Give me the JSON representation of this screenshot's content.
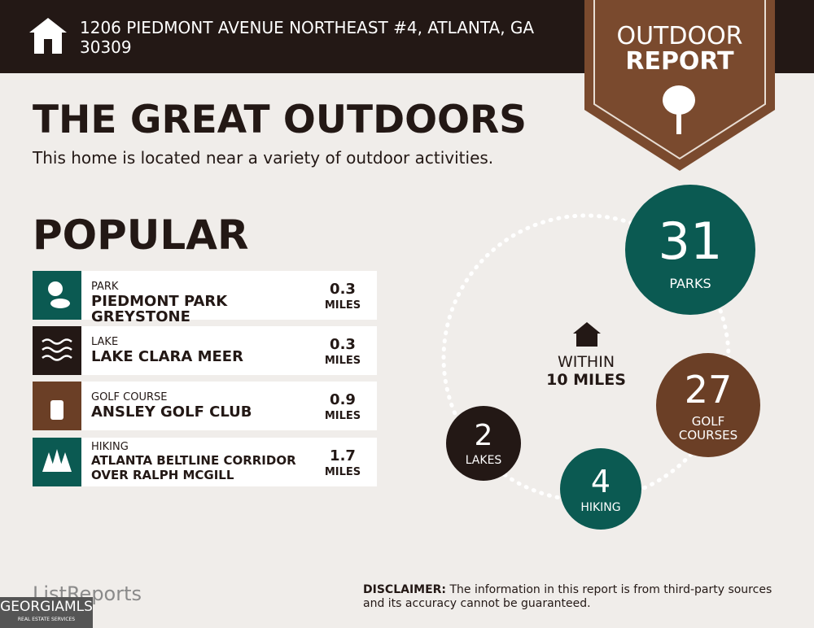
{
  "header": {
    "address": "1206 PIEDMONT AVENUE NORTHEAST #4, ATLANTA, GA 30309"
  },
  "badge": {
    "line1": "OUTDOOR",
    "line2": "REPORT"
  },
  "title": "THE GREAT OUTDOORS",
  "subtitle": "This home is located near a variety of outdoor activities.",
  "section": "POPULAR",
  "items": [
    {
      "category": "PARK",
      "name": "PIEDMONT PARK GREYSTONE",
      "distance": 0.3,
      "unit": "MILES"
    },
    {
      "category": "LAKE",
      "name": "LAKE CLARA MEER",
      "distance": 0.3,
      "unit": "MILES"
    },
    {
      "category": "GOLF COURSE",
      "name": "ANSLEY GOLF CLUB",
      "distance": 0.9,
      "unit": "MILES"
    },
    {
      "category": "HIKING",
      "name": "ATLANTA BELTLINE CORRIDOR OVER RALPH MCGILL",
      "distance": 1.7,
      "unit": "MILES"
    }
  ],
  "radius": {
    "line1": "WITHIN",
    "line2": "10 MILES"
  },
  "stats": [
    {
      "count": 31,
      "label": "PARKS"
    },
    {
      "count": 27,
      "label": "GOLF COURSES"
    },
    {
      "count": 4,
      "label": "HIKING"
    },
    {
      "count": 2,
      "label": "LAKES"
    }
  ],
  "footer": {
    "logo": "ListReports",
    "disclaimer_label": "DISCLAIMER:",
    "disclaimer": "The information in this report is from third-party sources and its accuracy cannot be guaranteed.",
    "mls": "GEORGIAMLS",
    "mls_sub": "REAL ESTATE SERVICES"
  }
}
